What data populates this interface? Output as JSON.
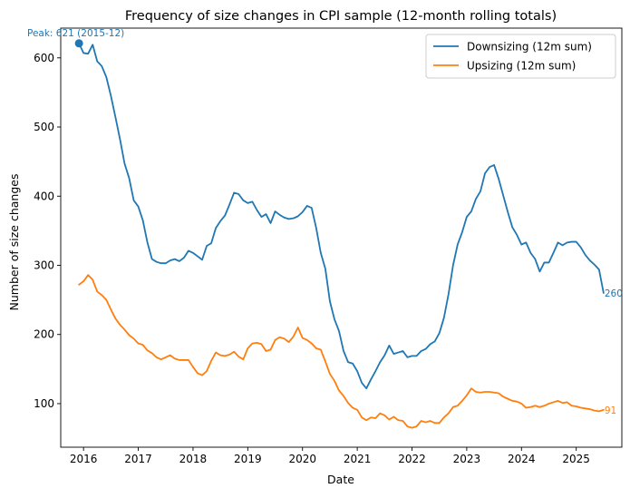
{
  "chart_data": {
    "type": "line",
    "title": "Frequency of size changes in CPI sample (12-month rolling totals)",
    "xlabel": "Date",
    "ylabel": "Number of size changes",
    "xlim": [
      "2015-08",
      "2025-11"
    ],
    "ylim": [
      37,
      643
    ],
    "x_ticks": [
      {
        "date": "2016-01",
        "label": "2016"
      },
      {
        "date": "2017-01",
        "label": "2017"
      },
      {
        "date": "2018-01",
        "label": "2018"
      },
      {
        "date": "2019-01",
        "label": "2019"
      },
      {
        "date": "2020-01",
        "label": "2020"
      },
      {
        "date": "2021-01",
        "label": "2021"
      },
      {
        "date": "2022-01",
        "label": "2022"
      },
      {
        "date": "2023-01",
        "label": "2023"
      },
      {
        "date": "2024-01",
        "label": "2024"
      },
      {
        "date": "2025-01",
        "label": "2025"
      }
    ],
    "y_ticks": [
      100,
      200,
      300,
      400,
      500,
      600
    ],
    "grid": false,
    "legend_position": "top-right",
    "series": [
      {
        "name": "Downsizing (12m sum)",
        "color": "#1f77b4",
        "points": [
          [
            "2015-12",
            621
          ],
          [
            "2016-01",
            607
          ],
          [
            "2016-02",
            606
          ],
          [
            "2016-03",
            619
          ],
          [
            "2016-04",
            595
          ],
          [
            "2016-05",
            588
          ],
          [
            "2016-06",
            572
          ],
          [
            "2016-07",
            545
          ],
          [
            "2016-08",
            514
          ],
          [
            "2016-09",
            482
          ],
          [
            "2016-10",
            447
          ],
          [
            "2016-11",
            426
          ],
          [
            "2016-12",
            394
          ],
          [
            "2017-01",
            385
          ],
          [
            "2017-02",
            365
          ],
          [
            "2017-03",
            333
          ],
          [
            "2017-04",
            309
          ],
          [
            "2017-05",
            305
          ],
          [
            "2017-06",
            303
          ],
          [
            "2017-07",
            303
          ],
          [
            "2017-08",
            307
          ],
          [
            "2017-09",
            309
          ],
          [
            "2017-10",
            306
          ],
          [
            "2017-11",
            311
          ],
          [
            "2017-12",
            321
          ],
          [
            "2018-01",
            318
          ],
          [
            "2018-02",
            313
          ],
          [
            "2018-03",
            308
          ],
          [
            "2018-04",
            328
          ],
          [
            "2018-05",
            332
          ],
          [
            "2018-06",
            354
          ],
          [
            "2018-07",
            364
          ],
          [
            "2018-08",
            372
          ],
          [
            "2018-09",
            388
          ],
          [
            "2018-10",
            405
          ],
          [
            "2018-11",
            403
          ],
          [
            "2018-12",
            394
          ],
          [
            "2019-01",
            390
          ],
          [
            "2019-02",
            392
          ],
          [
            "2019-03",
            380
          ],
          [
            "2019-04",
            370
          ],
          [
            "2019-05",
            374
          ],
          [
            "2019-06",
            361
          ],
          [
            "2019-07",
            378
          ],
          [
            "2019-08",
            373
          ],
          [
            "2019-09",
            369
          ],
          [
            "2019-10",
            367
          ],
          [
            "2019-11",
            368
          ],
          [
            "2019-12",
            371
          ],
          [
            "2020-01",
            377
          ],
          [
            "2020-02",
            386
          ],
          [
            "2020-03",
            383
          ],
          [
            "2020-04",
            354
          ],
          [
            "2020-05",
            318
          ],
          [
            "2020-06",
            295
          ],
          [
            "2020-07",
            248
          ],
          [
            "2020-08",
            222
          ],
          [
            "2020-09",
            205
          ],
          [
            "2020-10",
            176
          ],
          [
            "2020-11",
            160
          ],
          [
            "2020-12",
            158
          ],
          [
            "2021-01",
            147
          ],
          [
            "2021-02",
            130
          ],
          [
            "2021-03",
            122
          ],
          [
            "2021-04",
            135
          ],
          [
            "2021-05",
            147
          ],
          [
            "2021-06",
            160
          ],
          [
            "2021-07",
            170
          ],
          [
            "2021-08",
            184
          ],
          [
            "2021-09",
            172
          ],
          [
            "2021-10",
            174
          ],
          [
            "2021-11",
            176
          ],
          [
            "2021-12",
            167
          ],
          [
            "2022-01",
            169
          ],
          [
            "2022-02",
            169
          ],
          [
            "2022-03",
            176
          ],
          [
            "2022-04",
            179
          ],
          [
            "2022-05",
            186
          ],
          [
            "2022-06",
            190
          ],
          [
            "2022-07",
            202
          ],
          [
            "2022-08",
            224
          ],
          [
            "2022-09",
            258
          ],
          [
            "2022-10",
            300
          ],
          [
            "2022-11",
            330
          ],
          [
            "2022-12",
            348
          ],
          [
            "2023-01",
            370
          ],
          [
            "2023-02",
            378
          ],
          [
            "2023-03",
            396
          ],
          [
            "2023-04",
            407
          ],
          [
            "2023-05",
            433
          ],
          [
            "2023-06",
            442
          ],
          [
            "2023-07",
            445
          ],
          [
            "2023-08",
            425
          ],
          [
            "2023-09",
            401
          ],
          [
            "2023-10",
            377
          ],
          [
            "2023-11",
            355
          ],
          [
            "2023-12",
            344
          ],
          [
            "2024-01",
            330
          ],
          [
            "2024-02",
            333
          ],
          [
            "2024-03",
            318
          ],
          [
            "2024-04",
            309
          ],
          [
            "2024-05",
            291
          ],
          [
            "2024-06",
            304
          ],
          [
            "2024-07",
            304
          ],
          [
            "2024-08",
            318
          ],
          [
            "2024-09",
            333
          ],
          [
            "2024-10",
            329
          ],
          [
            "2024-11",
            333
          ],
          [
            "2024-12",
            334
          ],
          [
            "2025-01",
            334
          ],
          [
            "2025-02",
            326
          ],
          [
            "2025-03",
            315
          ],
          [
            "2025-04",
            307
          ],
          [
            "2025-05",
            301
          ],
          [
            "2025-06",
            294
          ],
          [
            "2025-07",
            260
          ]
        ]
      },
      {
        "name": "Upsizing (12m sum)",
        "color": "#ff7f0e",
        "points": [
          [
            "2015-12",
            272
          ],
          [
            "2016-01",
            277
          ],
          [
            "2016-02",
            286
          ],
          [
            "2016-03",
            279
          ],
          [
            "2016-04",
            262
          ],
          [
            "2016-05",
            257
          ],
          [
            "2016-06",
            250
          ],
          [
            "2016-07",
            236
          ],
          [
            "2016-08",
            223
          ],
          [
            "2016-09",
            214
          ],
          [
            "2016-10",
            207
          ],
          [
            "2016-11",
            199
          ],
          [
            "2016-12",
            194
          ],
          [
            "2017-01",
            187
          ],
          [
            "2017-02",
            185
          ],
          [
            "2017-03",
            177
          ],
          [
            "2017-04",
            173
          ],
          [
            "2017-05",
            167
          ],
          [
            "2017-06",
            164
          ],
          [
            "2017-07",
            167
          ],
          [
            "2017-08",
            170
          ],
          [
            "2017-09",
            165
          ],
          [
            "2017-10",
            163
          ],
          [
            "2017-11",
            163
          ],
          [
            "2017-12",
            163
          ],
          [
            "2018-01",
            153
          ],
          [
            "2018-02",
            144
          ],
          [
            "2018-03",
            141
          ],
          [
            "2018-04",
            147
          ],
          [
            "2018-05",
            162
          ],
          [
            "2018-06",
            174
          ],
          [
            "2018-07",
            170
          ],
          [
            "2018-08",
            169
          ],
          [
            "2018-09",
            171
          ],
          [
            "2018-10",
            175
          ],
          [
            "2018-11",
            168
          ],
          [
            "2018-12",
            164
          ],
          [
            "2019-01",
            180
          ],
          [
            "2019-02",
            187
          ],
          [
            "2019-03",
            188
          ],
          [
            "2019-04",
            186
          ],
          [
            "2019-05",
            176
          ],
          [
            "2019-06",
            178
          ],
          [
            "2019-07",
            192
          ],
          [
            "2019-08",
            196
          ],
          [
            "2019-09",
            194
          ],
          [
            "2019-10",
            189
          ],
          [
            "2019-11",
            197
          ],
          [
            "2019-12",
            210
          ],
          [
            "2020-01",
            195
          ],
          [
            "2020-02",
            192
          ],
          [
            "2020-03",
            187
          ],
          [
            "2020-04",
            180
          ],
          [
            "2020-05",
            178
          ],
          [
            "2020-06",
            161
          ],
          [
            "2020-07",
            143
          ],
          [
            "2020-08",
            133
          ],
          [
            "2020-09",
            119
          ],
          [
            "2020-10",
            111
          ],
          [
            "2020-11",
            101
          ],
          [
            "2020-12",
            94
          ],
          [
            "2021-01",
            91
          ],
          [
            "2021-02",
            80
          ],
          [
            "2021-03",
            76
          ],
          [
            "2021-04",
            80
          ],
          [
            "2021-05",
            79
          ],
          [
            "2021-06",
            86
          ],
          [
            "2021-07",
            83
          ],
          [
            "2021-08",
            77
          ],
          [
            "2021-09",
            81
          ],
          [
            "2021-10",
            76
          ],
          [
            "2021-11",
            75
          ],
          [
            "2021-12",
            67
          ],
          [
            "2022-01",
            65
          ],
          [
            "2022-02",
            67
          ],
          [
            "2022-03",
            75
          ],
          [
            "2022-04",
            73
          ],
          [
            "2022-05",
            75
          ],
          [
            "2022-06",
            72
          ],
          [
            "2022-07",
            72
          ],
          [
            "2022-08",
            80
          ],
          [
            "2022-09",
            86
          ],
          [
            "2022-10",
            95
          ],
          [
            "2022-11",
            97
          ],
          [
            "2022-12",
            104
          ],
          [
            "2023-01",
            112
          ],
          [
            "2023-02",
            122
          ],
          [
            "2023-03",
            117
          ],
          [
            "2023-04",
            116
          ],
          [
            "2023-05",
            117
          ],
          [
            "2023-06",
            117
          ],
          [
            "2023-07",
            116
          ],
          [
            "2023-08",
            115
          ],
          [
            "2023-09",
            110
          ],
          [
            "2023-10",
            107
          ],
          [
            "2023-11",
            104
          ],
          [
            "2023-12",
            103
          ],
          [
            "2024-01",
            100
          ],
          [
            "2024-02",
            94
          ],
          [
            "2024-03",
            95
          ],
          [
            "2024-04",
            97
          ],
          [
            "2024-05",
            95
          ],
          [
            "2024-06",
            97
          ],
          [
            "2024-07",
            100
          ],
          [
            "2024-08",
            102
          ],
          [
            "2024-09",
            104
          ],
          [
            "2024-10",
            101
          ],
          [
            "2024-11",
            102
          ],
          [
            "2024-12",
            97
          ],
          [
            "2025-01",
            96
          ],
          [
            "2025-02",
            94
          ],
          [
            "2025-03",
            93
          ],
          [
            "2025-04",
            92
          ],
          [
            "2025-05",
            90
          ],
          [
            "2025-06",
            89
          ],
          [
            "2025-07",
            91
          ]
        ]
      }
    ],
    "annotations": {
      "peak": {
        "date": "2015-12",
        "value": 621,
        "text": "Peak: 621 (2015-12)",
        "color": "#1f77b4"
      },
      "end_labels": [
        {
          "series": 0,
          "date": "2025-07",
          "value": 260,
          "text": "260",
          "color": "#1f77b4"
        },
        {
          "series": 1,
          "date": "2025-07",
          "value": 91,
          "text": "91",
          "color": "#ff7f0e"
        }
      ]
    }
  }
}
